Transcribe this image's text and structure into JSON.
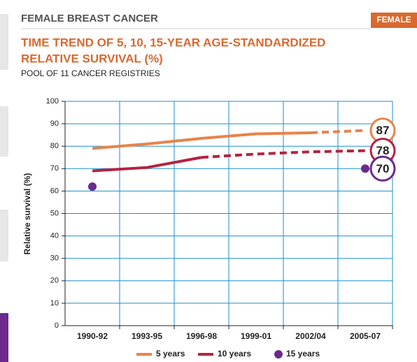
{
  "page": {
    "section": "FEMALE BREAST CANCER",
    "tab": "FEMALE"
  },
  "chart_data": {
    "type": "line",
    "title": "TIME TREND OF 5, 10, 15-YEAR AGE-STANDARDIZED",
    "title_line2": "RELATIVE SURVIVAL (%)",
    "subtitle": "POOL OF 11 CANCER REGISTRIES",
    "y_label": "Relative survival (%)",
    "categories": [
      "1990-92",
      "1993-95",
      "1996-98",
      "1999-01",
      "2002/04",
      "2005-07"
    ],
    "series": [
      {
        "name": "5 years",
        "color": "#e8834a",
        "mode": "line",
        "projected_from": 4,
        "values": [
          79,
          81,
          83.5,
          85.5,
          86,
          87
        ]
      },
      {
        "name": "10 years",
        "color": "#b5233f",
        "mode": "line",
        "projected_from": 2,
        "values": [
          69,
          70.5,
          75,
          76.5,
          77.5,
          78
        ]
      },
      {
        "name": "15 years",
        "color": "#6b2a8c",
        "mode": "markers",
        "values": [
          62,
          null,
          null,
          null,
          null,
          70
        ]
      }
    ],
    "ylim": [
      0,
      100
    ],
    "yticks": [
      0,
      10,
      20,
      30,
      40,
      50,
      60,
      70,
      80,
      90,
      100
    ],
    "grid": true
  }
}
